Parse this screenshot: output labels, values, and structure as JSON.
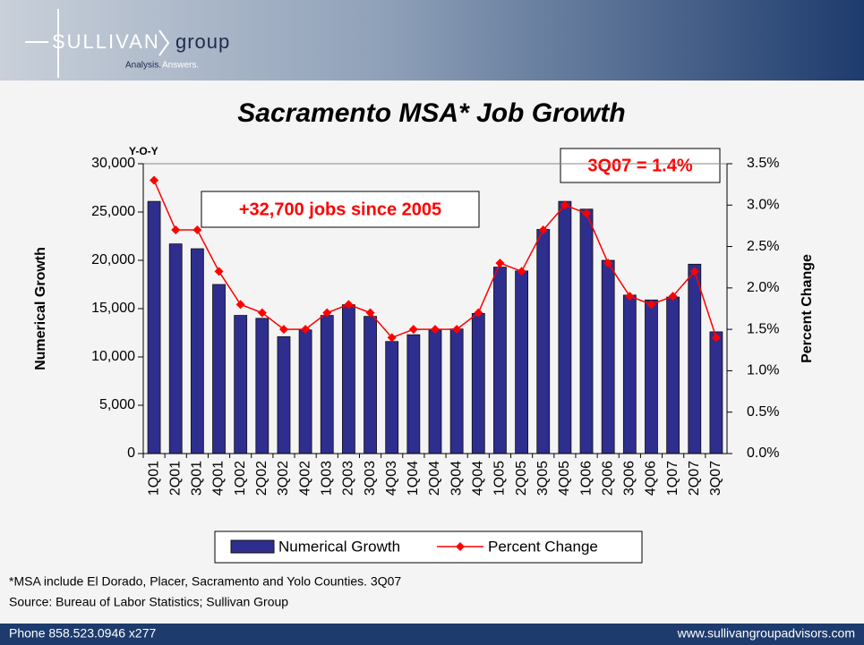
{
  "header": {
    "brand": "SULLIVAN",
    "brand2": "group",
    "tagline1": "Analysis.",
    "tagline2": "Answers."
  },
  "chart_data": {
    "type": "bar",
    "title": "Sacramento MSA* Job Growth",
    "y_label": "Numerical Growth",
    "y2_label": "Percent Change",
    "annotations": [
      "Y-O-Y",
      "+32,700 jobs since 2005",
      "3Q07 = 1.4%"
    ],
    "categories": [
      "1Q01",
      "2Q01",
      "3Q01",
      "4Q01",
      "1Q02",
      "2Q02",
      "3Q02",
      "4Q02",
      "1Q03",
      "2Q03",
      "3Q03",
      "4Q03",
      "1Q04",
      "2Q04",
      "3Q04",
      "4Q04",
      "1Q05",
      "2Q05",
      "3Q05",
      "4Q05",
      "1Q06",
      "2Q06",
      "3Q06",
      "4Q06",
      "1Q07",
      "2Q07",
      "3Q07"
    ],
    "series": [
      {
        "name": "Numerical Growth",
        "type": "bar",
        "color": "#2e2e8e",
        "values": [
          26100,
          21700,
          21200,
          17500,
          14300,
          14000,
          12100,
          12800,
          14300,
          15400,
          14200,
          11600,
          12300,
          12800,
          12900,
          14500,
          19300,
          18900,
          23200,
          26100,
          25300,
          20000,
          16400,
          15900,
          16200,
          19600,
          12600
        ]
      },
      {
        "name": "Percent Change",
        "type": "line",
        "axis": "y2",
        "color": "#ff0000",
        "values": [
          3.3,
          2.7,
          2.7,
          2.2,
          1.8,
          1.7,
          1.5,
          1.5,
          1.7,
          1.8,
          1.7,
          1.4,
          1.5,
          1.5,
          1.5,
          1.7,
          2.3,
          2.2,
          2.7,
          3.0,
          2.9,
          2.3,
          1.9,
          1.8,
          1.9,
          2.2,
          1.4
        ]
      }
    ],
    "ylim": [
      0,
      30000
    ],
    "yticks": [
      {
        "value": 0,
        "label": "0"
      },
      {
        "value": 5000,
        "label": "5,000"
      },
      {
        "value": 10000,
        "label": "10,000"
      },
      {
        "value": 15000,
        "label": "15,000"
      },
      {
        "value": 20000,
        "label": "20,000"
      },
      {
        "value": 25000,
        "label": "25,000"
      },
      {
        "value": 30000,
        "label": "30,000"
      }
    ],
    "y2lim": [
      0,
      3.5
    ],
    "y2ticks": [
      {
        "value": 0,
        "label": "0.0%"
      },
      {
        "value": 0.5,
        "label": "0.5%"
      },
      {
        "value": 1,
        "label": "1.0%"
      },
      {
        "value": 1.5,
        "label": "1.5%"
      },
      {
        "value": 2,
        "label": "2.0%"
      },
      {
        "value": 2.5,
        "label": "2.5%"
      },
      {
        "value": 3,
        "label": "3.0%"
      },
      {
        "value": 3.5,
        "label": "3.5%"
      }
    ],
    "legend": "bottom"
  },
  "notes": [
    "*MSA include El Dorado, Placer, Sacramento and Yolo Counties. 3Q07",
    "Source: Bureau of Labor Statistics; Sullivan Group"
  ],
  "footer": {
    "phone": "Phone 858.523.0946 x277",
    "url": "www.sullivangroupadvisors.com"
  }
}
